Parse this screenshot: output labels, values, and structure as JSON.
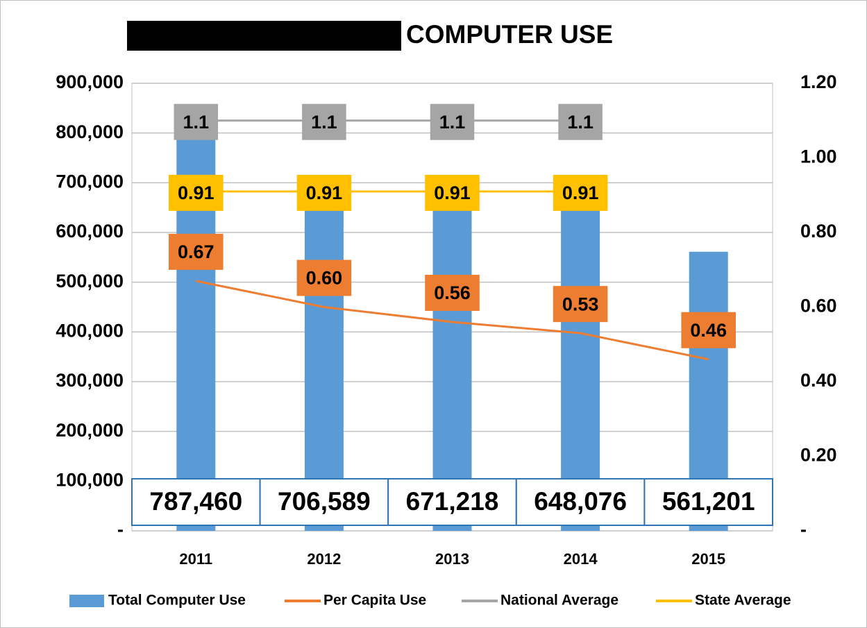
{
  "chart_data": {
    "type": "bar",
    "title": "COMPUTER USE",
    "categories": [
      "2011",
      "2012",
      "2013",
      "2014",
      "2015"
    ],
    "ylim": [
      0,
      900000
    ],
    "yticks": [
      {
        "value": 0,
        "label": "-"
      },
      {
        "value": 100000,
        "label": "100,000"
      },
      {
        "value": 200000,
        "label": "200,000"
      },
      {
        "value": 300000,
        "label": "300,000"
      },
      {
        "value": 400000,
        "label": "400,000"
      },
      {
        "value": 500000,
        "label": "500,000"
      },
      {
        "value": 600000,
        "label": "600,000"
      },
      {
        "value": 700000,
        "label": "700,000"
      },
      {
        "value": 800000,
        "label": "800,000"
      },
      {
        "value": 900000,
        "label": "900,000"
      }
    ],
    "y2lim": [
      0,
      1.2
    ],
    "y2ticks": [
      {
        "value": 0,
        "label": "-"
      },
      {
        "value": 0.2,
        "label": "0.20"
      },
      {
        "value": 0.4,
        "label": "0.40"
      },
      {
        "value": 0.6,
        "label": "0.60"
      },
      {
        "value": 0.8,
        "label": "0.80"
      },
      {
        "value": 1.0,
        "label": "1.00"
      },
      {
        "value": 1.2,
        "label": "1.20"
      }
    ],
    "grid": true,
    "legend": "bottom",
    "series": [
      {
        "name": "Total Computer Use",
        "type": "bar",
        "color": "#5b9bd5",
        "values": [
          787460,
          706589,
          671218,
          648076,
          561201
        ],
        "value_labels": [
          "787,460",
          "706,589",
          "671,218",
          "648,076",
          "561,201"
        ]
      },
      {
        "name": "Per Capita Use",
        "type": "line",
        "axis": "y2",
        "color": "#ed7d31",
        "values": [
          0.67,
          0.6,
          0.56,
          0.53,
          0.46
        ],
        "value_labels": [
          "0.67",
          "0.60",
          "0.56",
          "0.53",
          "0.46"
        ]
      },
      {
        "name": "National Average",
        "type": "line",
        "axis": "y2",
        "color": "#a5a5a5",
        "values": [
          1.1,
          1.1,
          1.1,
          1.1,
          null
        ],
        "value_labels": [
          "1.1",
          "1.1",
          "1.1",
          "1.1",
          null
        ]
      },
      {
        "name": "State Average",
        "type": "line",
        "axis": "y2",
        "color": "#ffc000",
        "values": [
          0.91,
          0.91,
          0.91,
          0.91,
          null
        ],
        "value_labels": [
          "0.91",
          "0.91",
          "0.91",
          "0.91",
          null
        ]
      }
    ]
  }
}
